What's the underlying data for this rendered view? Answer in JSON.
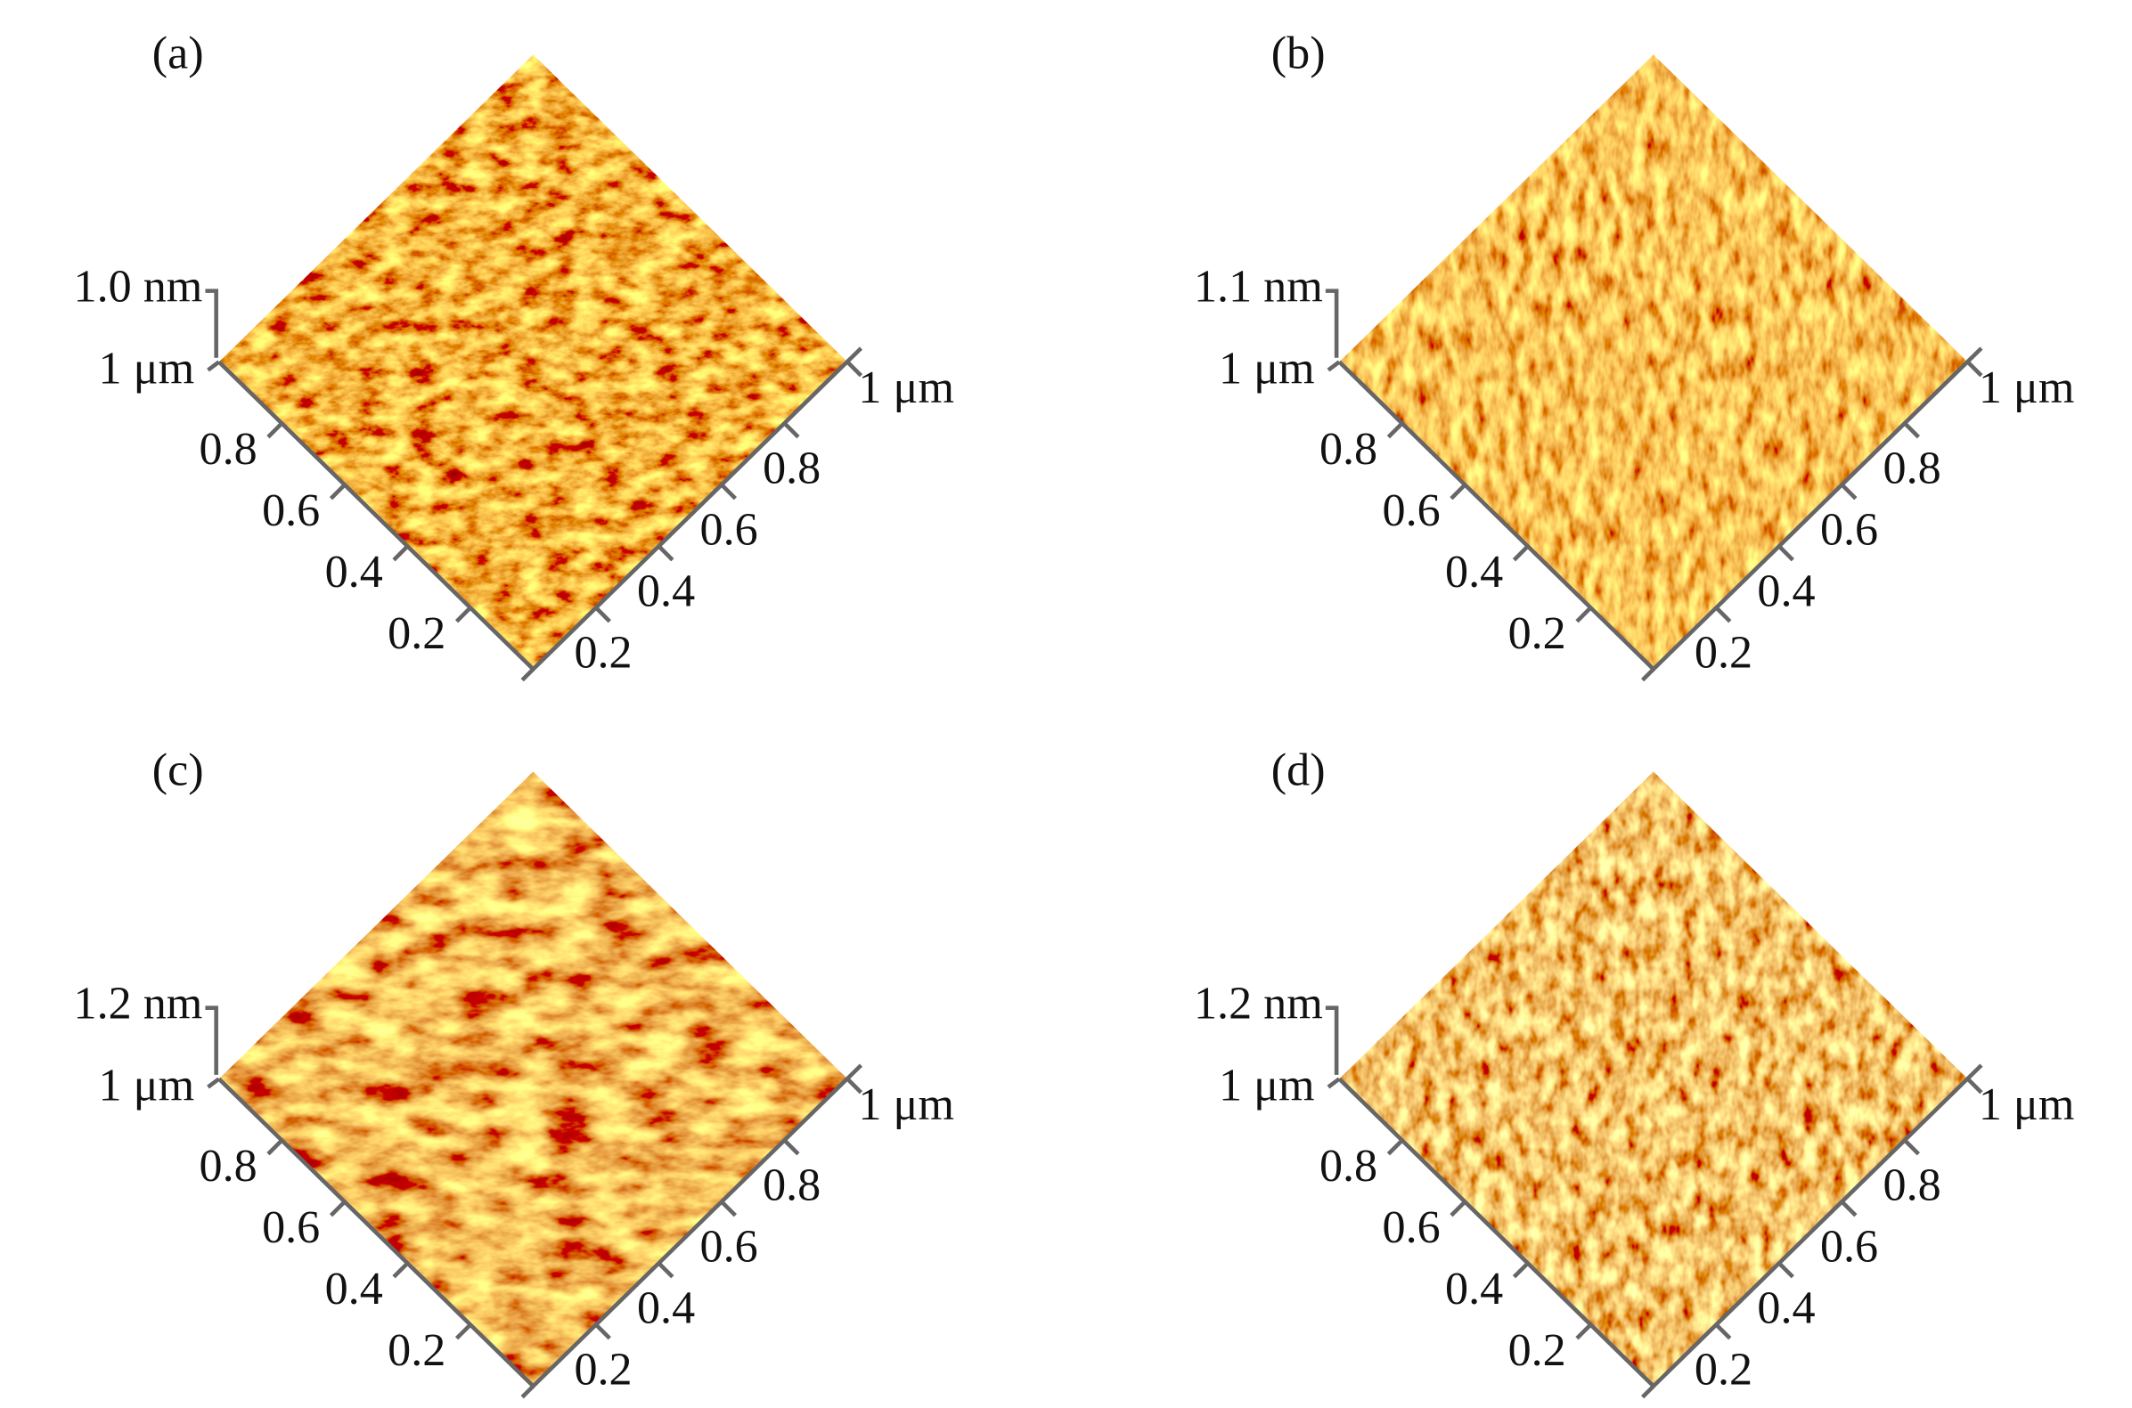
{
  "panels": [
    {
      "label": "(a)",
      "height": "1.0 nm",
      "left_axis": [
        "1 μm",
        "0.8",
        "0.6",
        "0.4",
        "0.2"
      ],
      "right_axis": [
        "0.2",
        "0.4",
        "0.6",
        "0.8",
        "1 μm"
      ]
    },
    {
      "label": "(b)",
      "height": "1.1 nm",
      "left_axis": [
        "1 μm",
        "0.8",
        "0.6",
        "0.4",
        "0.2"
      ],
      "right_axis": [
        "0.2",
        "0.4",
        "0.6",
        "0.8",
        "1 μm"
      ]
    },
    {
      "label": "(c)",
      "height": "1.2 nm",
      "left_axis": [
        "1 μm",
        "0.8",
        "0.6",
        "0.4",
        "0.2"
      ],
      "right_axis": [
        "0.2",
        "0.4",
        "0.6",
        "0.8",
        "1 μm"
      ]
    },
    {
      "label": "(d)",
      "height": "1.2 nm",
      "left_axis": [
        "1 μm",
        "0.8",
        "0.6",
        "0.4",
        "0.2"
      ],
      "right_axis": [
        "0.2",
        "0.4",
        "0.6",
        "0.8",
        "1 μm"
      ]
    }
  ]
}
